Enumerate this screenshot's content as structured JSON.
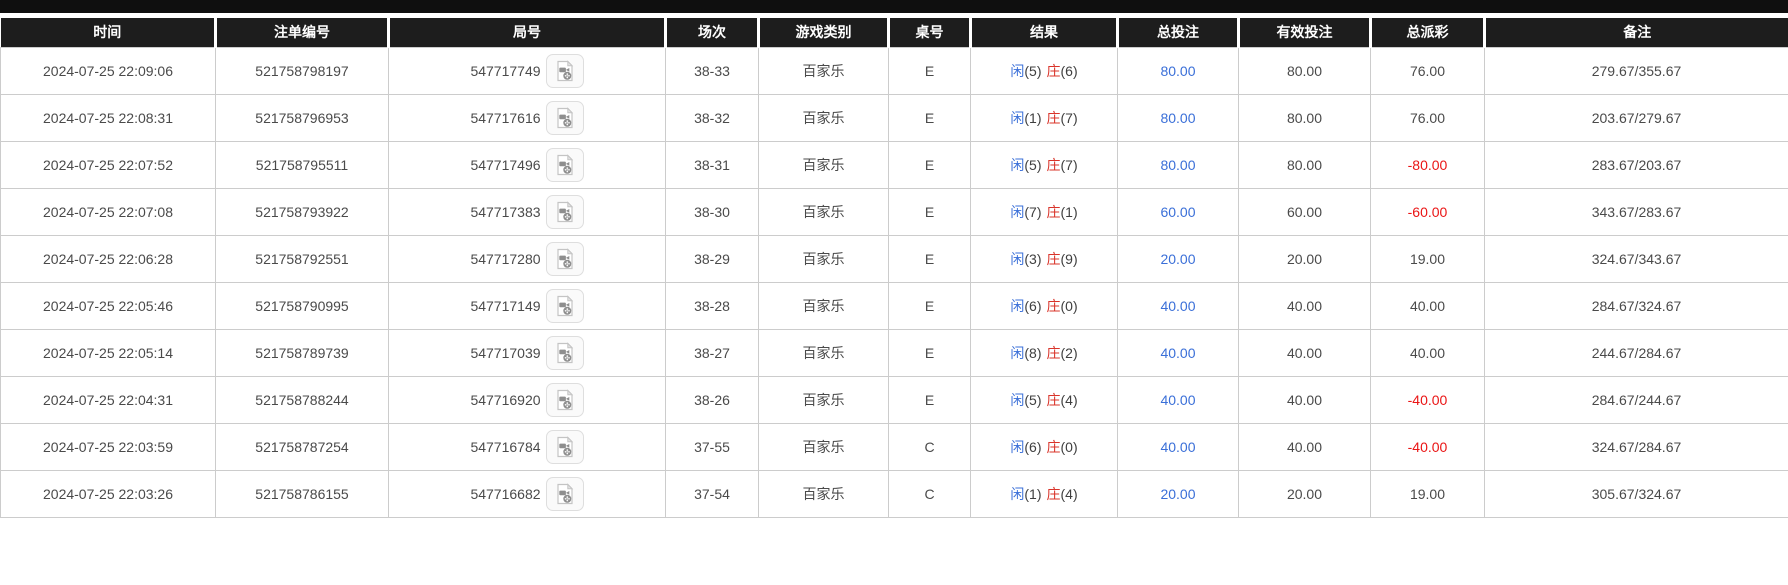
{
  "table": {
    "columns": [
      "时间",
      "注单编号",
      "局号",
      "场次",
      "游戏类别",
      "桌号",
      "结果",
      "总投注",
      "有效投注",
      "总派彩",
      "备注"
    ],
    "colors": {
      "header_bg": "#1d1d1d",
      "header_text": "#ffffff",
      "link_blue": "#3a6fd8",
      "player_blue": "#3a6fd8",
      "banker_red": "#d9342a",
      "negative_red": "#ea1515",
      "cell_text": "#4a4a4a",
      "grid_line": "#cccccc"
    },
    "icons": {
      "round_action": "video-replay-icon"
    },
    "rows": [
      {
        "time": "2024-07-25 22:09:06",
        "bet_id": "521758798197",
        "round_id": "547717749",
        "session": "38-33",
        "game": "百家乐",
        "table_no": "E",
        "result": {
          "player_label": "闲",
          "player_score": "(5)",
          "banker_label": "庄",
          "banker_score": "(6)"
        },
        "total_bet": "80.00",
        "valid_bet": "80.00",
        "payout": "76.00",
        "remark": "279.67/355.67"
      },
      {
        "time": "2024-07-25 22:08:31",
        "bet_id": "521758796953",
        "round_id": "547717616",
        "session": "38-32",
        "game": "百家乐",
        "table_no": "E",
        "result": {
          "player_label": "闲",
          "player_score": "(1)",
          "banker_label": "庄",
          "banker_score": "(7)"
        },
        "total_bet": "80.00",
        "valid_bet": "80.00",
        "payout": "76.00",
        "remark": "203.67/279.67"
      },
      {
        "time": "2024-07-25 22:07:52",
        "bet_id": "521758795511",
        "round_id": "547717496",
        "session": "38-31",
        "game": "百家乐",
        "table_no": "E",
        "result": {
          "player_label": "闲",
          "player_score": "(5)",
          "banker_label": "庄",
          "banker_score": "(7)"
        },
        "total_bet": "80.00",
        "valid_bet": "80.00",
        "payout": "-80.00",
        "remark": "283.67/203.67"
      },
      {
        "time": "2024-07-25 22:07:08",
        "bet_id": "521758793922",
        "round_id": "547717383",
        "session": "38-30",
        "game": "百家乐",
        "table_no": "E",
        "result": {
          "player_label": "闲",
          "player_score": "(7)",
          "banker_label": "庄",
          "banker_score": "(1)"
        },
        "total_bet": "60.00",
        "valid_bet": "60.00",
        "payout": "-60.00",
        "remark": "343.67/283.67"
      },
      {
        "time": "2024-07-25 22:06:28",
        "bet_id": "521758792551",
        "round_id": "547717280",
        "session": "38-29",
        "game": "百家乐",
        "table_no": "E",
        "result": {
          "player_label": "闲",
          "player_score": "(3)",
          "banker_label": "庄",
          "banker_score": "(9)"
        },
        "total_bet": "20.00",
        "valid_bet": "20.00",
        "payout": "19.00",
        "remark": "324.67/343.67"
      },
      {
        "time": "2024-07-25 22:05:46",
        "bet_id": "521758790995",
        "round_id": "547717149",
        "session": "38-28",
        "game": "百家乐",
        "table_no": "E",
        "result": {
          "player_label": "闲",
          "player_score": "(6)",
          "banker_label": "庄",
          "banker_score": "(0)"
        },
        "total_bet": "40.00",
        "valid_bet": "40.00",
        "payout": "40.00",
        "remark": "284.67/324.67"
      },
      {
        "time": "2024-07-25 22:05:14",
        "bet_id": "521758789739",
        "round_id": "547717039",
        "session": "38-27",
        "game": "百家乐",
        "table_no": "E",
        "result": {
          "player_label": "闲",
          "player_score": "(8)",
          "banker_label": "庄",
          "banker_score": "(2)"
        },
        "total_bet": "40.00",
        "valid_bet": "40.00",
        "payout": "40.00",
        "remark": "244.67/284.67"
      },
      {
        "time": "2024-07-25 22:04:31",
        "bet_id": "521758788244",
        "round_id": "547716920",
        "session": "38-26",
        "game": "百家乐",
        "table_no": "E",
        "result": {
          "player_label": "闲",
          "player_score": "(5)",
          "banker_label": "庄",
          "banker_score": "(4)"
        },
        "total_bet": "40.00",
        "valid_bet": "40.00",
        "payout": "-40.00",
        "remark": "284.67/244.67"
      },
      {
        "time": "2024-07-25 22:03:59",
        "bet_id": "521758787254",
        "round_id": "547716784",
        "session": "37-55",
        "game": "百家乐",
        "table_no": "C",
        "result": {
          "player_label": "闲",
          "player_score": "(6)",
          "banker_label": "庄",
          "banker_score": "(0)"
        },
        "total_bet": "40.00",
        "valid_bet": "40.00",
        "payout": "-40.00",
        "remark": "324.67/284.67"
      },
      {
        "time": "2024-07-25 22:03:26",
        "bet_id": "521758786155",
        "round_id": "547716682",
        "session": "37-54",
        "game": "百家乐",
        "table_no": "C",
        "result": {
          "player_label": "闲",
          "player_score": "(1)",
          "banker_label": "庄",
          "banker_score": "(4)"
        },
        "total_bet": "20.00",
        "valid_bet": "20.00",
        "payout": "19.00",
        "remark": "305.67/324.67"
      }
    ]
  }
}
